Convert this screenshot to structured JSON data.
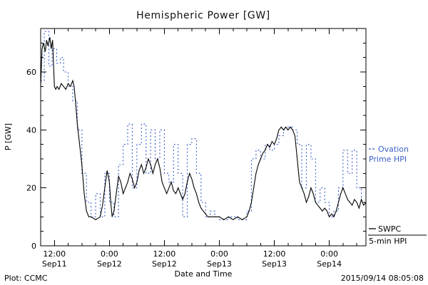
{
  "title": "Hemispheric Power [GW]",
  "footer": {
    "left": "Plot: CCMC",
    "right": "2015/09/14 08:05:08"
  },
  "chart_data": {
    "type": "line",
    "title": "Hemispheric Power [GW]",
    "xlabel": "Date and Time",
    "ylabel": "P [GW]",
    "ylim": [
      0,
      75
    ],
    "x_range_hours": [
      9,
      80
    ],
    "x_note": "x values are hours since Sep 11 00:00",
    "y_ticks": [
      0,
      20,
      40,
      60
    ],
    "x_ticks": [
      {
        "hour": 12,
        "time": "12:00",
        "date": "Sep11"
      },
      {
        "hour": 24,
        "time": "0:00",
        "date": "Sep12"
      },
      {
        "hour": 36,
        "time": "12:00",
        "date": "Sep12"
      },
      {
        "hour": 48,
        "time": "0:00",
        "date": "Sep13"
      },
      {
        "hour": 60,
        "time": "12:00",
        "date": "Sep13"
      },
      {
        "hour": 72,
        "time": "0:00",
        "date": "Sep14"
      }
    ],
    "legend": [
      {
        "name": "Ovation Prime HPI",
        "lines": [
          "Ovation",
          "Prime HPI"
        ],
        "color": "#3a5fc8"
      },
      {
        "name": "SWPC 5-min HPI",
        "lines": [
          "SWPC",
          "5-min HPI"
        ],
        "color": "#000000"
      }
    ],
    "series": [
      {
        "name": "Ovation Prime HPI",
        "color": "#3a5fc8",
        "step": true,
        "dash": "2,3",
        "x": [
          9,
          9.8,
          10.8,
          11.5,
          12.5,
          13.3,
          14,
          15,
          16,
          17,
          18,
          19,
          20,
          21,
          22,
          23,
          24,
          25,
          26,
          27,
          28,
          29,
          30,
          31,
          32,
          33,
          34,
          35,
          36,
          37,
          38,
          39,
          40,
          41,
          42,
          43,
          44,
          45,
          46,
          47,
          48,
          50,
          52,
          54,
          55,
          56,
          57,
          58,
          59,
          60,
          61,
          62,
          63,
          64,
          65,
          66,
          67,
          68,
          69,
          70,
          71,
          72,
          73,
          74,
          75,
          76,
          77,
          78,
          79
        ],
        "values": [
          57,
          74,
          62,
          68,
          63,
          65,
          60,
          55,
          50,
          40,
          25,
          15,
          10,
          18,
          10,
          25,
          15,
          10,
          28,
          35,
          42,
          20,
          35,
          42,
          25,
          40,
          30,
          40,
          25,
          22,
          35,
          25,
          10,
          35,
          37,
          25,
          15,
          10,
          12,
          10,
          9,
          10,
          9,
          12,
          30,
          33,
          30,
          35,
          33,
          35,
          38,
          40,
          41,
          40,
          35,
          20,
          35,
          30,
          15,
          20,
          15,
          10,
          12,
          20,
          33,
          25,
          33,
          20,
          15
        ]
      },
      {
        "name": "SWPC 5-min HPI",
        "color": "#000000",
        "step": false,
        "x": [
          9,
          9.3,
          9.6,
          10,
          10.3,
          10.6,
          11,
          11.3,
          11.6,
          12,
          12.3,
          12.6,
          13,
          13.5,
          14,
          14.5,
          15,
          15.5,
          16,
          16.3,
          16.6,
          17,
          17.5,
          18,
          18.5,
          19,
          19.5,
          20,
          21,
          22,
          22.5,
          23,
          23.5,
          24,
          24.3,
          24.6,
          25,
          25.5,
          26,
          26.5,
          27,
          27.5,
          28,
          28.5,
          29,
          29.5,
          30,
          30.5,
          31,
          31.5,
          32,
          32.5,
          33,
          33.5,
          34,
          34.5,
          35,
          35.5,
          36,
          36.5,
          37,
          37.5,
          38,
          38.5,
          39,
          39.5,
          40,
          40.5,
          41,
          41.5,
          42,
          42.5,
          43,
          43.5,
          44,
          44.5,
          45,
          45.5,
          46,
          47,
          48,
          49,
          50,
          51,
          52,
          53,
          54,
          54.5,
          55,
          55.5,
          56,
          56.5,
          57,
          57.5,
          58,
          58.5,
          59,
          59.5,
          60,
          60.5,
          61,
          61.5,
          62,
          62.5,
          63,
          63.5,
          64,
          64.5,
          65,
          65.5,
          66,
          66.5,
          67,
          67.5,
          68,
          68.5,
          69,
          69.5,
          70,
          70.5,
          71,
          71.5,
          72,
          72.5,
          73,
          73.5,
          74,
          74.5,
          75,
          75.5,
          76,
          76.5,
          77,
          77.5,
          78,
          78.5,
          79,
          79.5,
          80
        ],
        "values": [
          55,
          68,
          70,
          67,
          71,
          69,
          72,
          68,
          71,
          55,
          54,
          55,
          54,
          56,
          55,
          54,
          56,
          55,
          57,
          55,
          50,
          42,
          35,
          28,
          18,
          12,
          10,
          10,
          9,
          10,
          14,
          20,
          26,
          22,
          15,
          10,
          12,
          18,
          24,
          22,
          18,
          20,
          22,
          25,
          23,
          20,
          22,
          26,
          28,
          25,
          27,
          30,
          28,
          25,
          28,
          30,
          27,
          22,
          20,
          18,
          20,
          22,
          19,
          18,
          20,
          18,
          16,
          18,
          22,
          25,
          23,
          20,
          18,
          15,
          13,
          12,
          11,
          10,
          10,
          10,
          10,
          9,
          10,
          9,
          10,
          9,
          10,
          12,
          15,
          20,
          25,
          28,
          30,
          32,
          33,
          35,
          34,
          36,
          35,
          37,
          40,
          41,
          40,
          41,
          40,
          41,
          40,
          38,
          30,
          22,
          20,
          18,
          15,
          17,
          20,
          18,
          15,
          14,
          13,
          12,
          13,
          12,
          10,
          11,
          10,
          12,
          15,
          18,
          20,
          18,
          16,
          15,
          14,
          16,
          15,
          13,
          16,
          14,
          15
        ]
      }
    ]
  }
}
